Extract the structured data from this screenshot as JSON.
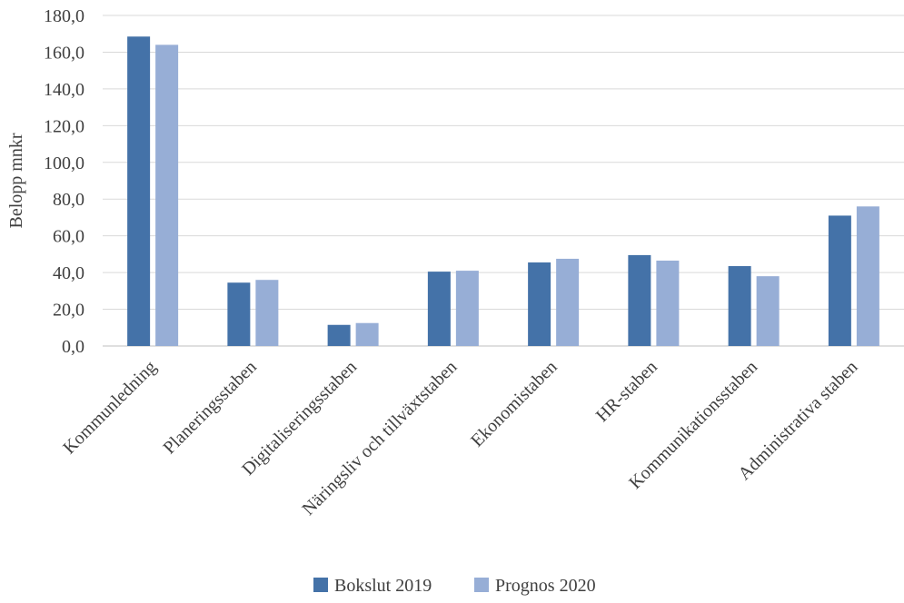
{
  "chart_data": {
    "type": "bar",
    "ylabel": "Belopp mnkr",
    "ylim": [
      0,
      180
    ],
    "yticks": [
      "0,0",
      "20,0",
      "40,0",
      "60,0",
      "80,0",
      "100,0",
      "120,0",
      "140,0",
      "160,0",
      "180,0"
    ],
    "grid": true,
    "legend_position": "bottom",
    "categories": [
      "Kommunledning",
      "Planeringsstaben",
      "Digitaliseringsstaben",
      "Näringsliv och tillväxtstaben",
      "Ekonomistaben",
      "HR-staben",
      "Kommunikationsstaben",
      "Administrativa staben"
    ],
    "series": [
      {
        "name": "Bokslut 2019",
        "color": "#4472a8",
        "values": [
          168.5,
          34.5,
          11.5,
          40.5,
          45.5,
          49.5,
          43.5,
          71.0
        ]
      },
      {
        "name": "Prognos 2020",
        "color": "#97aed6",
        "values": [
          164.0,
          36.0,
          12.5,
          41.0,
          47.5,
          46.5,
          38.0,
          76.0
        ]
      }
    ]
  }
}
